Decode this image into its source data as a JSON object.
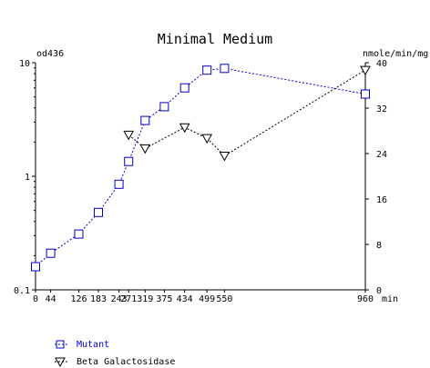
{
  "chart_data": {
    "type": "line",
    "title": "Minimal Medium",
    "xlabel": "min",
    "ylabel_left": "od436",
    "ylabel_right": "nmole/min/mg",
    "x_ticks": [
      0,
      44,
      126,
      183,
      243,
      271,
      319,
      375,
      434,
      499,
      550,
      960
    ],
    "xlim": [
      0,
      960
    ],
    "left_axis": {
      "scale": "log",
      "ylim": [
        0.1,
        10
      ],
      "ticks": [
        "0.1",
        "1",
        "10"
      ]
    },
    "right_axis": {
      "scale": "linear",
      "ylim": [
        0,
        40
      ],
      "ticks": [
        "0",
        "8",
        "16",
        "24",
        "32",
        "40"
      ]
    },
    "grid": false,
    "legend_position": "bottom-left",
    "series": [
      {
        "name": "Mutant",
        "axis": "left",
        "marker": "square",
        "color": "#0000cc",
        "x": [
          0,
          44,
          126,
          183,
          243,
          271,
          319,
          375,
          434,
          499,
          550,
          960
        ],
        "y": [
          0.16,
          0.21,
          0.31,
          0.48,
          0.85,
          1.35,
          3.1,
          4.1,
          6.0,
          8.6,
          8.9,
          5.3
        ]
      },
      {
        "name": "Beta Galactosidase",
        "axis": "right",
        "marker": "triangle-down",
        "color": "#000000",
        "x": [
          271,
          319,
          434,
          499,
          550,
          960
        ],
        "y": [
          27.3,
          24.9,
          28.6,
          26.7,
          23.6,
          38.7
        ]
      }
    ]
  }
}
